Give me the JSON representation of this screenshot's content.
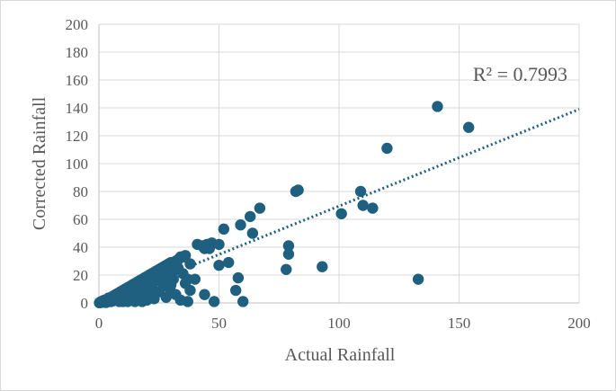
{
  "chart_data": {
    "type": "scatter",
    "title": "",
    "xlabel": "Actual Rainfall",
    "ylabel": "Corrected Rainfall",
    "xlim": [
      0,
      200
    ],
    "ylim": [
      0,
      200
    ],
    "xticks": [
      "0",
      "50",
      "100",
      "150",
      "200"
    ],
    "yticks": [
      "0",
      "20",
      "40",
      "60",
      "80",
      "100",
      "120",
      "140",
      "160",
      "180",
      "200"
    ],
    "grid": true,
    "legend": "none",
    "marker_color": "#1f5f7f",
    "trendline": {
      "type": "linear",
      "style": "dotted",
      "color": "#1f5f7f",
      "from": [
        0,
        0
      ],
      "to": [
        200,
        139
      ],
      "r2_text": "R² = 0.7993"
    },
    "points": [
      [
        0.2,
        0.1
      ],
      [
        0.5,
        0.3
      ],
      [
        0.8,
        0.6
      ],
      [
        1,
        1
      ],
      [
        1.3,
        0.4
      ],
      [
        1.5,
        1.2
      ],
      [
        2,
        0.5
      ],
      [
        2,
        1.8
      ],
      [
        2.5,
        1
      ],
      [
        3,
        2
      ],
      [
        3,
        0.3
      ],
      [
        3.5,
        2.8
      ],
      [
        4,
        1
      ],
      [
        4,
        3.5
      ],
      [
        4.5,
        2
      ],
      [
        5,
        4
      ],
      [
        5,
        1
      ],
      [
        5.5,
        3
      ],
      [
        6,
        5
      ],
      [
        6,
        1.5
      ],
      [
        6.5,
        4
      ],
      [
        7,
        6
      ],
      [
        7,
        2
      ],
      [
        7.5,
        5
      ],
      [
        8,
        7
      ],
      [
        8,
        3
      ],
      [
        8.5,
        1
      ],
      [
        9,
        8
      ],
      [
        9,
        4
      ],
      [
        9.5,
        6
      ],
      [
        10,
        9
      ],
      [
        10,
        5
      ],
      [
        10,
        1
      ],
      [
        10.5,
        7
      ],
      [
        11,
        10
      ],
      [
        11,
        3
      ],
      [
        11.5,
        8
      ],
      [
        12,
        11
      ],
      [
        12,
        5
      ],
      [
        12,
        1
      ],
      [
        12.5,
        9
      ],
      [
        13,
        12
      ],
      [
        13,
        6
      ],
      [
        13.5,
        3
      ],
      [
        14,
        13
      ],
      [
        14,
        8
      ],
      [
        14.5,
        10
      ],
      [
        15,
        14
      ],
      [
        15,
        5
      ],
      [
        15,
        1
      ],
      [
        15.5,
        11
      ],
      [
        16,
        15
      ],
      [
        16,
        8
      ],
      [
        16.5,
        3
      ],
      [
        17,
        16
      ],
      [
        17,
        12
      ],
      [
        17.5,
        6
      ],
      [
        18,
        17
      ],
      [
        18,
        9
      ],
      [
        18,
        1
      ],
      [
        18.5,
        13
      ],
      [
        19,
        18
      ],
      [
        19,
        4
      ],
      [
        19.5,
        10
      ],
      [
        20,
        19
      ],
      [
        20,
        14
      ],
      [
        20,
        2
      ],
      [
        21,
        20
      ],
      [
        21,
        7
      ],
      [
        22,
        21
      ],
      [
        22,
        12
      ],
      [
        23,
        22
      ],
      [
        23,
        3
      ],
      [
        24,
        23
      ],
      [
        24,
        16
      ],
      [
        25,
        24
      ],
      [
        25,
        8
      ],
      [
        26,
        25
      ],
      [
        26,
        19
      ],
      [
        27,
        26
      ],
      [
        27,
        12
      ],
      [
        28,
        27
      ],
      [
        28,
        4
      ],
      [
        28,
        16
      ],
      [
        29,
        28
      ],
      [
        29,
        20
      ],
      [
        30,
        29
      ],
      [
        30,
        24
      ],
      [
        30,
        8
      ],
      [
        30,
        13
      ],
      [
        31,
        23
      ],
      [
        31,
        17
      ],
      [
        32,
        30
      ],
      [
        32,
        6
      ],
      [
        33,
        31
      ],
      [
        33,
        25
      ],
      [
        34,
        33
      ],
      [
        34,
        2
      ],
      [
        35,
        33
      ],
      [
        35,
        21
      ],
      [
        36,
        34
      ],
      [
        36,
        14
      ],
      [
        37,
        1
      ],
      [
        37,
        17
      ],
      [
        38,
        28
      ],
      [
        38,
        9
      ],
      [
        40,
        17
      ],
      [
        41,
        42
      ],
      [
        43,
        41
      ],
      [
        44,
        39
      ],
      [
        44,
        6
      ],
      [
        45,
        42
      ],
      [
        46,
        39
      ],
      [
        47,
        43
      ],
      [
        48,
        1
      ],
      [
        50,
        27
      ],
      [
        50,
        42
      ],
      [
        52,
        53
      ],
      [
        54,
        29
      ],
      [
        57,
        9
      ],
      [
        58,
        18
      ],
      [
        59,
        56
      ],
      [
        60,
        1
      ],
      [
        63,
        62
      ],
      [
        64,
        50
      ],
      [
        67,
        68
      ],
      [
        78,
        24
      ],
      [
        79,
        41
      ],
      [
        79,
        35
      ],
      [
        82,
        80
      ],
      [
        83,
        81
      ],
      [
        93,
        26
      ],
      [
        101,
        64
      ],
      [
        109,
        80
      ],
      [
        110,
        70
      ],
      [
        114,
        68
      ],
      [
        120,
        111
      ],
      [
        133,
        17
      ],
      [
        141,
        141
      ],
      [
        154,
        126
      ]
    ]
  }
}
